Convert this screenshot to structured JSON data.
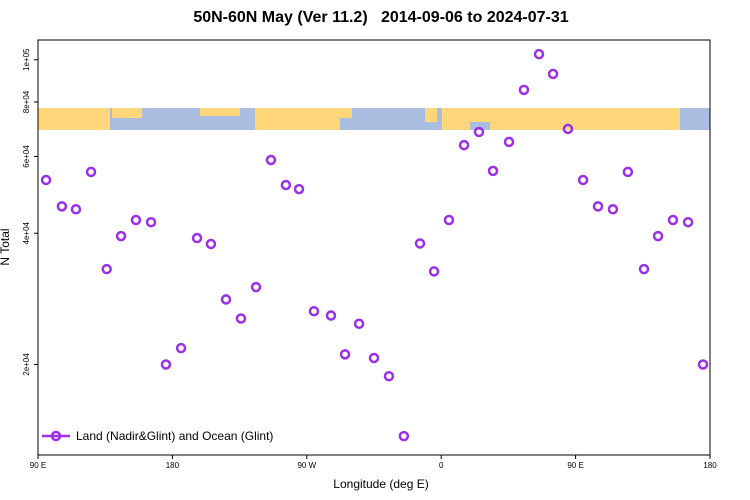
{
  "chart_data": {
    "type": "scatter",
    "title": "50N-60N May (Ver 11.2)   2014-09-06 to 2024-07-31",
    "xlabel": "Longitude (deg E)",
    "ylabel": "N Total",
    "yscale": "log",
    "xlim": [
      90,
      540
    ],
    "ylim": [
      12400,
      111000
    ],
    "xticks": [
      {
        "value": 90,
        "label": "90 E"
      },
      {
        "value": 180,
        "label": "180"
      },
      {
        "value": 270,
        "label": "90 W"
      },
      {
        "value": 360,
        "label": "0"
      },
      {
        "value": 450,
        "label": "90 E"
      },
      {
        "value": 540,
        "label": "180"
      }
    ],
    "yticks": [
      {
        "value": 20000,
        "label": "2e+04"
      },
      {
        "value": 40000,
        "label": "4e+04"
      },
      {
        "value": 60000,
        "label": "6e+04"
      },
      {
        "value": 80000,
        "label": "8e+04"
      },
      {
        "value": 100000,
        "label": "1e+05"
      }
    ],
    "legend": "bottom-left",
    "x": [
      95.4,
      106,
      115.4,
      125.5,
      136,
      145.6,
      155.6,
      165.7,
      175.7,
      185.8,
      196.5,
      205.8,
      215.9,
      225.9,
      236,
      246,
      256,
      264.8,
      274.8,
      286.2,
      295.6,
      305,
      315,
      325,
      335,
      345.8,
      355.2,
      365.2,
      375.3,
      385.3,
      394.7,
      405.4,
      415.4,
      425.5,
      434.9,
      444.9,
      455,
      465,
      475,
      485,
      495.8,
      505.2,
      515.2,
      525.3,
      535.3
    ],
    "series": [
      {
        "name": "Land (Nadir&Glint) and Ocean (Glint)",
        "color": "#9b30e6",
        "values": [
          53000,
          46100,
          45400,
          55300,
          33100,
          39400,
          42900,
          42400,
          20000,
          21800,
          39000,
          37800,
          28200,
          25500,
          30100,
          58900,
          51600,
          50500,
          26500,
          25900,
          21100,
          24800,
          20700,
          18800,
          13700,
          37900,
          32700,
          42900,
          63700,
          68300,
          55600,
          64800,
          85300,
          103000,
          92800,
          69400,
          53000,
          46100,
          45400,
          55300,
          33100,
          39400,
          42900,
          42400,
          20000
        ]
      }
    ]
  }
}
